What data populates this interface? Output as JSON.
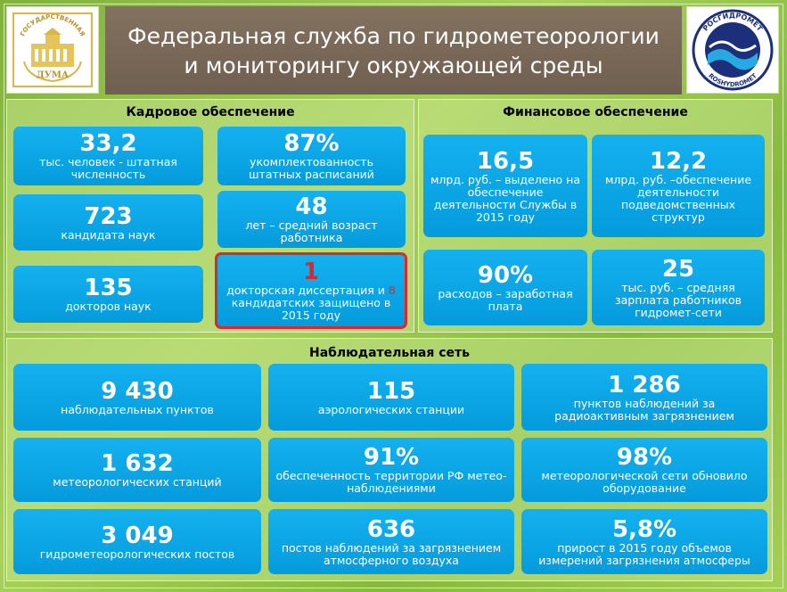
{
  "header": {
    "title_line1": "Федеральная служба по гидрометеорологии",
    "title_line2": "и мониторингу окружающей среды",
    "left_logo_text_top": "ГОСУДАРСТВЕННАЯ",
    "left_logo_text_bottom": "ДУМА",
    "right_logo_text_top": "РОСГИДРОМЕТ",
    "right_logo_text_bottom": "ROSHYDROMET"
  },
  "staff": {
    "title": "Кадровое обеспечение",
    "tiles": [
      {
        "num": "33,2",
        "desc": "тыс. человек - штатная численность"
      },
      {
        "num": "87%",
        "desc": "укомплектованность штатных расписаний"
      },
      {
        "num": "723",
        "desc": "кандидата наук"
      },
      {
        "num": "48",
        "desc": "лет – средний возраст работника"
      },
      {
        "num": "135",
        "desc": "докторов наук"
      },
      {
        "num": "1",
        "desc_a": "докторская диссертация и ",
        "desc_red": "8",
        "desc_b": " кандидатских защищено в 2015 году"
      }
    ]
  },
  "finance": {
    "title": "Финансовое обеспечение",
    "tiles": [
      {
        "num": "16,5",
        "desc": "млрд. руб. – выделено на обеспечение деятельности Службы в 2015 году"
      },
      {
        "num": "12,2",
        "desc": "млрд. руб. –обеспечение деятельности подведомственных структур"
      },
      {
        "num": "90%",
        "desc": "расходов – заработная плата"
      },
      {
        "num": "25",
        "desc": "тыс. руб. – средняя зарплата работников гидромет-сети"
      }
    ]
  },
  "network": {
    "title": "Наблюдательная сеть",
    "tiles": [
      {
        "num": "9 430",
        "desc": "наблюдательных пунктов"
      },
      {
        "num": "115",
        "desc": "аэрологических станции"
      },
      {
        "num": "1 286",
        "desc": "пунктов наблюдений за радиоактивным загрязнением"
      },
      {
        "num": "1 632",
        "desc": "метеорологических станций"
      },
      {
        "num": "91%",
        "desc": "обеспеченность территории РФ метео-наблюдениями"
      },
      {
        "num": "98%",
        "desc": "метеорологической сети обновило оборудование"
      },
      {
        "num": "3 049",
        "desc": "гидрометеорологических постов"
      },
      {
        "num": "636",
        "desc": "постов наблюдений за загрязнением атмосферного воздуха"
      },
      {
        "num": "5,8%",
        "desc": "прирост в 2015 году объемов измерений загрязнения атмосферы"
      }
    ]
  }
}
